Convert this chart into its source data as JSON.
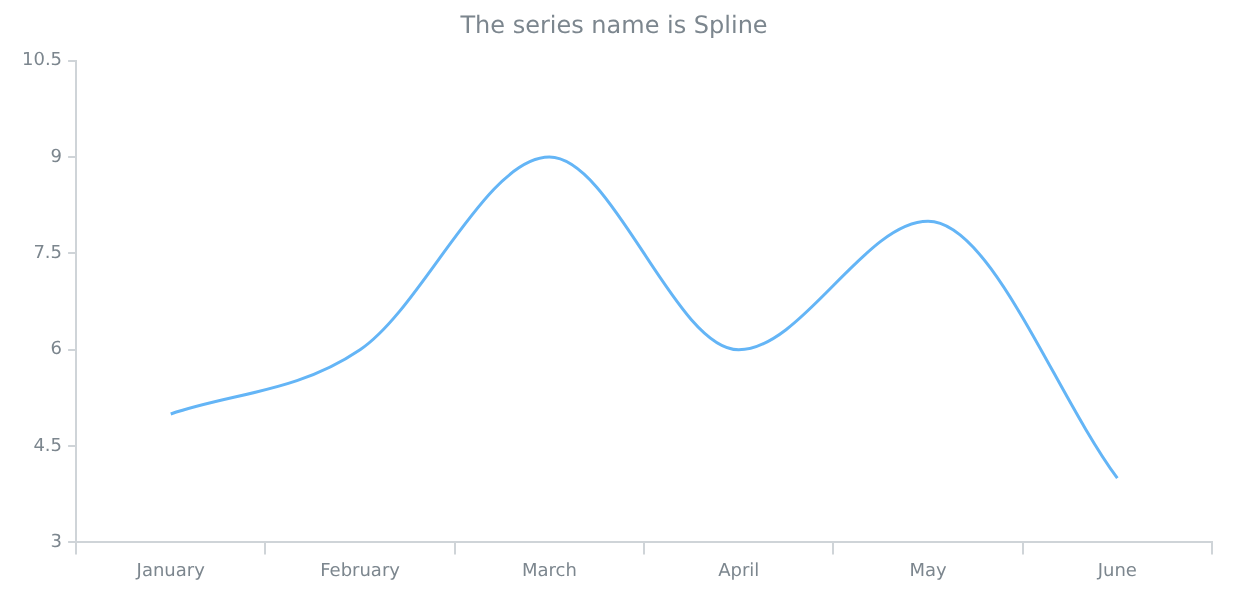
{
  "chart_data": {
    "type": "line",
    "title": "The series name is Spline",
    "categories": [
      "January",
      "February",
      "March",
      "April",
      "May",
      "June"
    ],
    "series": [
      {
        "color": "#64b5f6",
        "values": [
          5,
          6,
          9,
          6,
          8,
          4
        ]
      }
    ],
    "ylim": [
      3,
      10.5
    ],
    "yticks": [
      3,
      4.5,
      6,
      7.5,
      9,
      10.5
    ],
    "grid": false,
    "legend": false,
    "marker": "none",
    "line_style": "solid"
  }
}
